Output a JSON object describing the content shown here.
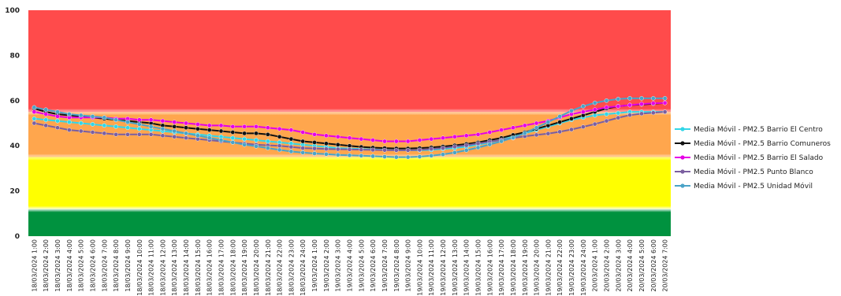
{
  "chart_data": {
    "type": "line",
    "title": "",
    "xlabel": "",
    "ylabel": "",
    "ylim": [
      0,
      100
    ],
    "yticks": [
      0,
      20,
      40,
      60,
      80,
      100
    ],
    "grid": false,
    "legend_position": "right",
    "bands": [
      {
        "from": 0,
        "to": 12,
        "color": "#00923f"
      },
      {
        "from": 12,
        "to": 35,
        "color": "#ffff00"
      },
      {
        "from": 35,
        "to": 55,
        "color": "#ffa64d"
      },
      {
        "from": 55,
        "to": 100,
        "color": "#ff4b4b"
      }
    ],
    "categories": [
      "18/03/2024 1:00",
      "18/03/2024 2:00",
      "18/03/2024 3:00",
      "18/03/2024 4:00",
      "18/03/2024 5:00",
      "18/03/2024 6:00",
      "18/03/2024 7:00",
      "18/03/2024 8:00",
      "18/03/2024 9:00",
      "18/03/2024 10:00",
      "18/03/2024 11:00",
      "18/03/2024 12:00",
      "18/03/2024 13:00",
      "18/03/2024 14:00",
      "18/03/2024 15:00",
      "18/03/2024 16:00",
      "18/03/2024 17:00",
      "18/03/2024 18:00",
      "18/03/2024 19:00",
      "18/03/2024 20:00",
      "18/03/2024 21:00",
      "18/03/2024 22:00",
      "18/03/2024 23:00",
      "18/03/2024 24:00",
      "19/03/2024 1:00",
      "19/03/2024 2:00",
      "19/03/2024 3:00",
      "19/03/2024 4:00",
      "19/03/2024 5:00",
      "19/03/2024 6:00",
      "19/03/2024 7:00",
      "19/03/2024 8:00",
      "19/03/2024 9:00",
      "19/03/2024 10:00",
      "19/03/2024 11:00",
      "19/03/2024 12:00",
      "19/03/2024 13:00",
      "19/03/2024 14:00",
      "19/03/2024 15:00",
      "19/03/2024 16:00",
      "19/03/2024 17:00",
      "19/03/2024 18:00",
      "19/03/2024 19:00",
      "19/03/2024 20:00",
      "19/03/2024 21:00",
      "19/03/2024 22:00",
      "19/03/2024 23:00",
      "19/03/2024 24:00",
      "20/03/2024 1:00",
      "20/03/2024 2:00",
      "20/03/2024 3:00",
      "20/03/2024 4:00",
      "20/03/2024 5:00",
      "20/03/2024 6:00",
      "20/03/2024 7:00"
    ],
    "series": [
      {
        "name": "Media Móvil - PM2.5 Barrio El Centro",
        "color": "#33d6e8",
        "values": [
          52,
          51.5,
          51,
          50.5,
          50,
          49.5,
          49,
          48.5,
          48,
          47.5,
          47,
          46.5,
          46,
          45.5,
          45,
          44.5,
          44,
          43.5,
          43,
          42.5,
          42,
          41.5,
          41,
          40.5,
          40,
          39.5,
          39,
          38.8,
          38.6,
          38.4,
          38.2,
          38,
          38,
          38,
          38.2,
          38.6,
          39,
          39.6,
          40.5,
          41.5,
          42.8,
          44,
          45.5,
          47,
          48.5,
          50,
          51.5,
          52.5,
          53.5,
          54,
          54.5,
          55,
          55,
          55,
          55
        ]
      },
      {
        "name": "Media Móvil - PM2.5 Barrio Comuneros",
        "color": "#111111",
        "values": [
          56.5,
          55,
          54,
          53.5,
          53,
          52.5,
          52,
          51.5,
          51,
          50.5,
          50,
          49,
          48.5,
          48,
          47.5,
          47,
          46.5,
          46,
          45.5,
          45.5,
          45,
          44,
          43,
          42,
          41.5,
          41,
          40.5,
          40,
          39.5,
          39.2,
          39,
          38.8,
          38.8,
          39,
          39.3,
          39.7,
          40.2,
          40.8,
          41.5,
          42.5,
          43.5,
          44.8,
          46,
          47.5,
          49,
          50.5,
          52,
          53.5,
          55,
          56.5,
          57.5,
          58,
          58.3,
          58.6,
          59
        ]
      },
      {
        "name": "Media Móvil - PM2.5 Barrio El Salado",
        "color": "#e600e6",
        "values": [
          55,
          54,
          53,
          52.5,
          52.5,
          52.5,
          52.5,
          52,
          52,
          51.5,
          51.5,
          51,
          50.5,
          50,
          49.5,
          49,
          49,
          48.5,
          48.5,
          48.5,
          48,
          47.5,
          47,
          46,
          45,
          44.5,
          44,
          43.5,
          43,
          42.5,
          42,
          42,
          42,
          42.5,
          43,
          43.5,
          44,
          44.5,
          45,
          46,
          47,
          48,
          49,
          50,
          51,
          52.5,
          54,
          55,
          56,
          57,
          57.5,
          58,
          58.5,
          58.8,
          59
        ]
      },
      {
        "name": "Media Móvil - PM2.5 Punto Blanco",
        "color": "#7b5fa0",
        "values": [
          50,
          49,
          48,
          47,
          46.5,
          46,
          45.5,
          45,
          45,
          45,
          45,
          44.5,
          44,
          43.5,
          43,
          42.5,
          42,
          41.5,
          41,
          40.5,
          40.2,
          40,
          39.5,
          39,
          38.8,
          38.6,
          38.5,
          38.4,
          38.3,
          38.2,
          38.1,
          38,
          38,
          38.2,
          38.6,
          39,
          39.6,
          40.2,
          41,
          41.8,
          42.6,
          43.4,
          44.2,
          44.8,
          45.4,
          46.2,
          47.2,
          48.4,
          49.6,
          51,
          52.4,
          53.6,
          54.2,
          54.6,
          55
        ]
      },
      {
        "name": "Media Móvil - PM2.5 Unidad Móvil",
        "color": "#4aa3c7",
        "values": [
          57,
          56,
          55,
          54,
          53.5,
          53,
          52.5,
          51.5,
          50.5,
          49.5,
          48.5,
          47.5,
          46.5,
          45.5,
          44.5,
          43.5,
          42.5,
          41.5,
          40.5,
          39.8,
          39,
          38.2,
          37.5,
          37,
          36.6,
          36.3,
          36,
          35.8,
          35.6,
          35.4,
          35.2,
          35,
          35,
          35.2,
          35.6,
          36.2,
          37,
          38,
          39.2,
          40.6,
          42,
          43.6,
          45.6,
          48,
          50.5,
          53,
          55.5,
          57.5,
          59,
          60,
          60.7,
          61,
          61,
          61,
          61
        ]
      }
    ]
  }
}
